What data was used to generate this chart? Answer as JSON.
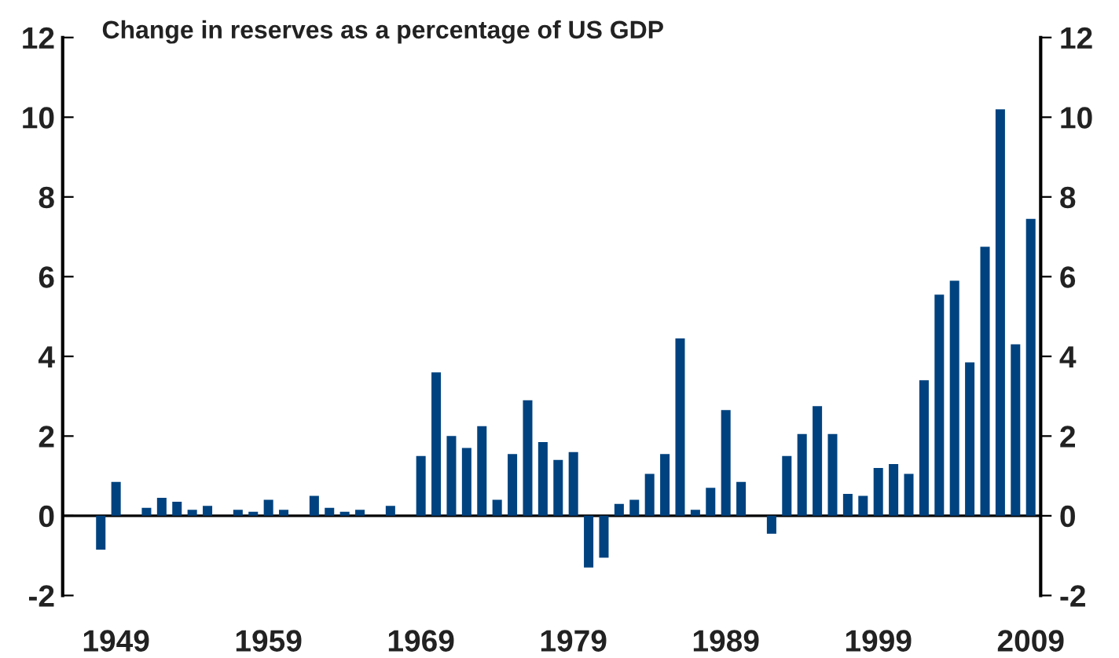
{
  "chart_data": {
    "type": "bar",
    "title": "Change in reserves as a percentage of US GDP",
    "categories": [
      null,
      "1949",
      null,
      null,
      null,
      null,
      null,
      null,
      null,
      null,
      null,
      "1959",
      null,
      null,
      null,
      null,
      null,
      null,
      null,
      null,
      null,
      "1969",
      null,
      null,
      null,
      null,
      null,
      null,
      null,
      null,
      null,
      "1979",
      null,
      null,
      null,
      null,
      null,
      null,
      null,
      null,
      null,
      "1989",
      null,
      null,
      null,
      null,
      null,
      null,
      null,
      null,
      null,
      "1999",
      null,
      null,
      null,
      null,
      null,
      null,
      null,
      null,
      null,
      "2009"
    ],
    "values": [
      -0.85,
      0.85,
      null,
      0.2,
      0.45,
      0.35,
      0.15,
      0.25,
      null,
      0.15,
      0.1,
      0.4,
      0.15,
      null,
      0.5,
      0.2,
      0.1,
      0.15,
      null,
      0.25,
      null,
      1.5,
      3.6,
      2.0,
      1.7,
      2.25,
      0.4,
      1.55,
      2.9,
      1.85,
      1.4,
      1.6,
      -1.3,
      -1.05,
      0.3,
      0.4,
      1.05,
      1.55,
      4.45,
      0.15,
      0.7,
      2.65,
      0.85,
      null,
      -0.45,
      1.5,
      2.05,
      2.75,
      2.05,
      0.55,
      0.5,
      1.2,
      1.3,
      1.05,
      3.4,
      5.55,
      5.9,
      3.85,
      6.75,
      10.2,
      4.3,
      7.45
    ],
    "color": "#00427f",
    "ylim": [
      -2,
      12
    ],
    "yticks": [
      -2,
      0,
      2,
      4,
      6,
      8,
      10,
      12
    ],
    "y2lim": [
      -2,
      12
    ],
    "y2ticks": [
      -2,
      0,
      2,
      4,
      6,
      8,
      10,
      12
    ]
  }
}
